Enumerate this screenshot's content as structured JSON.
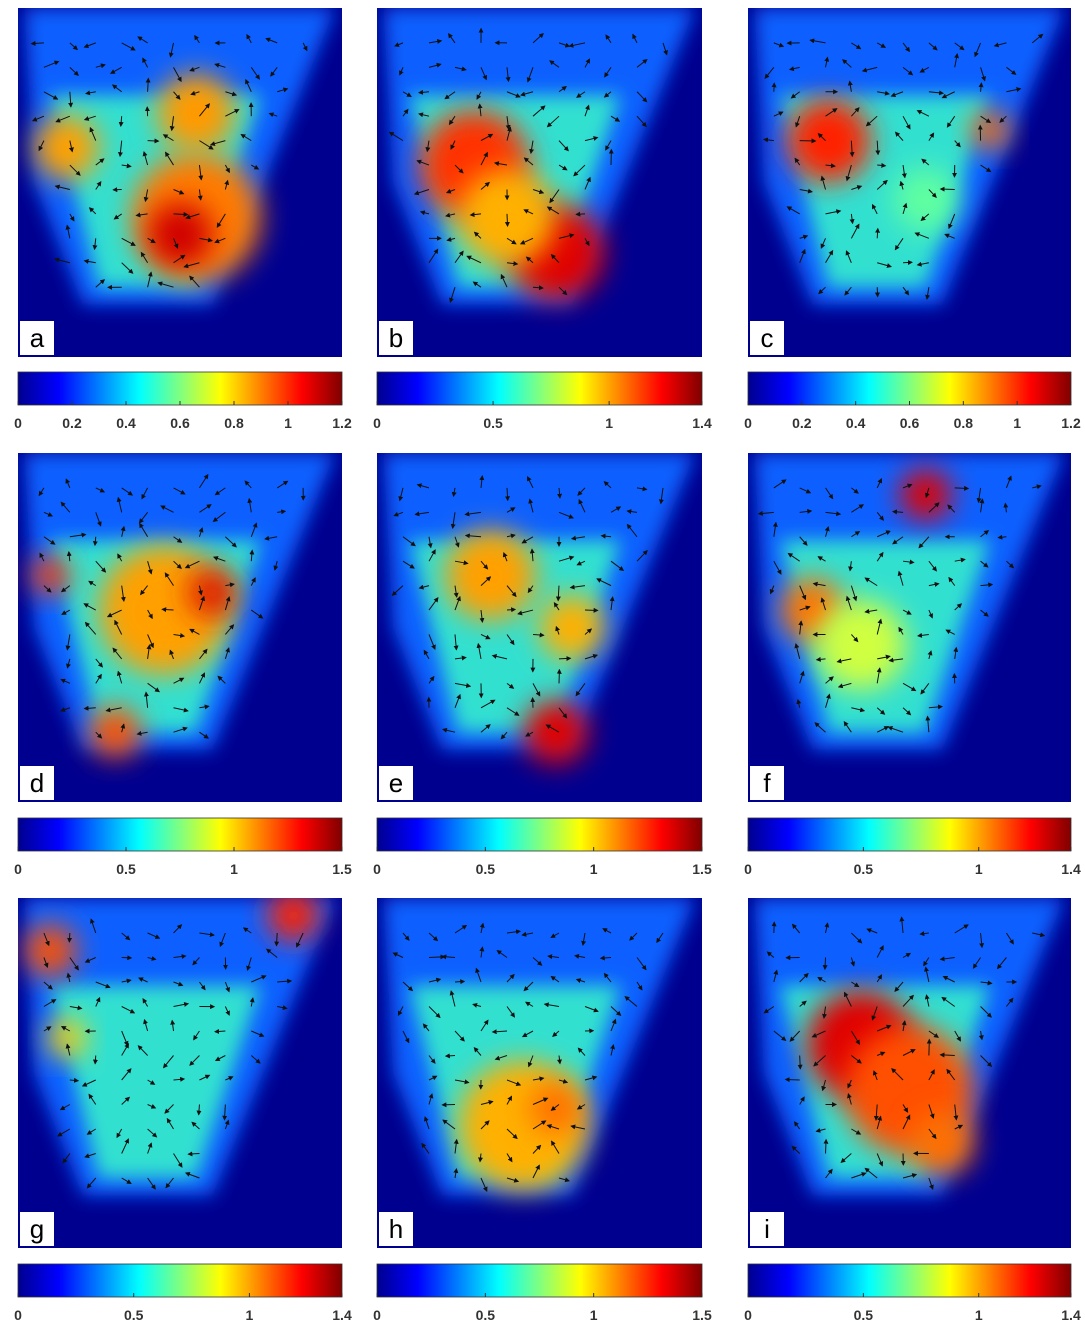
{
  "panels": [
    {
      "label": "a",
      "colorbar": {
        "lim": [
          0,
          1.2
        ],
        "ticks": [
          0,
          0.2,
          0.4,
          0.6,
          0.8,
          1,
          1.2
        ]
      }
    },
    {
      "label": "b",
      "colorbar": {
        "lim": [
          0,
          1.4
        ],
        "ticks": [
          0,
          0.5,
          1,
          1.4
        ]
      }
    },
    {
      "label": "c",
      "colorbar": {
        "lim": [
          0,
          1.2
        ],
        "ticks": [
          0,
          0.2,
          0.4,
          0.6,
          0.8,
          1,
          1.2
        ]
      }
    },
    {
      "label": "d",
      "colorbar": {
        "lim": [
          0,
          1.5
        ],
        "ticks": [
          0,
          0.5,
          1,
          1.5
        ]
      }
    },
    {
      "label": "e",
      "colorbar": {
        "lim": [
          0,
          1.5
        ],
        "ticks": [
          0,
          0.5,
          1,
          1.5
        ]
      }
    },
    {
      "label": "f",
      "colorbar": {
        "lim": [
          0,
          1.4
        ],
        "ticks": [
          0,
          0.5,
          1,
          1.4
        ]
      }
    },
    {
      "label": "g",
      "colorbar": {
        "lim": [
          0,
          1.4
        ],
        "ticks": [
          0,
          0.5,
          1,
          1.4
        ]
      }
    },
    {
      "label": "h",
      "colorbar": {
        "lim": [
          0,
          1.5
        ],
        "ticks": [
          0,
          0.5,
          1,
          1.5
        ]
      }
    },
    {
      "label": "i",
      "colorbar": {
        "lim": [
          0,
          1.4
        ],
        "ticks": [
          0,
          0.5,
          1,
          1.4
        ]
      }
    }
  ]
}
